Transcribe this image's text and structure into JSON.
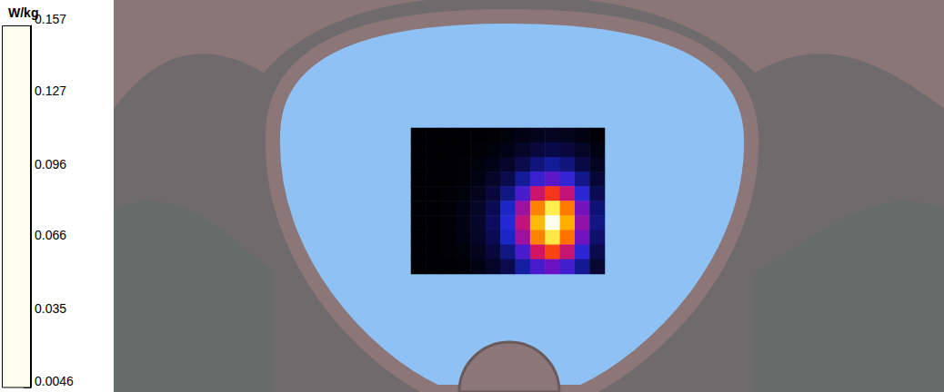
{
  "chart_data": {
    "type": "heatmap",
    "tick_labels": false,
    "cells": [
      [
        0.005,
        0.005,
        0.005,
        0.005,
        0.005,
        0.006,
        0.007,
        0.008,
        0.01,
        0.011,
        0.01,
        0.008,
        0.006
      ],
      [
        0.005,
        0.005,
        0.005,
        0.005,
        0.006,
        0.007,
        0.009,
        0.012,
        0.016,
        0.018,
        0.016,
        0.012,
        0.008
      ],
      [
        0.005,
        0.005,
        0.005,
        0.006,
        0.007,
        0.009,
        0.013,
        0.019,
        0.026,
        0.03,
        0.026,
        0.018,
        0.011
      ],
      [
        0.005,
        0.005,
        0.005,
        0.006,
        0.008,
        0.012,
        0.019,
        0.03,
        0.045,
        0.052,
        0.044,
        0.028,
        0.015
      ],
      [
        0.005,
        0.005,
        0.006,
        0.007,
        0.01,
        0.016,
        0.027,
        0.048,
        0.078,
        0.095,
        0.076,
        0.042,
        0.02
      ],
      [
        0.005,
        0.005,
        0.006,
        0.008,
        0.012,
        0.02,
        0.036,
        0.066,
        0.112,
        0.14,
        0.11,
        0.058,
        0.025
      ],
      [
        0.005,
        0.005,
        0.006,
        0.008,
        0.013,
        0.022,
        0.04,
        0.075,
        0.125,
        0.157,
        0.122,
        0.064,
        0.027
      ],
      [
        0.005,
        0.005,
        0.006,
        0.008,
        0.012,
        0.02,
        0.036,
        0.066,
        0.112,
        0.138,
        0.108,
        0.057,
        0.024
      ],
      [
        0.005,
        0.005,
        0.006,
        0.007,
        0.01,
        0.016,
        0.027,
        0.048,
        0.08,
        0.098,
        0.077,
        0.042,
        0.019
      ],
      [
        0.005,
        0.005,
        0.005,
        0.006,
        0.008,
        0.012,
        0.019,
        0.031,
        0.048,
        0.056,
        0.047,
        0.029,
        0.014
      ]
    ],
    "colorbar": {
      "title": "W/kg",
      "range": [
        0.0046,
        0.157
      ],
      "ticks": [
        0.0046,
        0.035,
        0.066,
        0.096,
        0.127,
        0.157
      ]
    }
  }
}
